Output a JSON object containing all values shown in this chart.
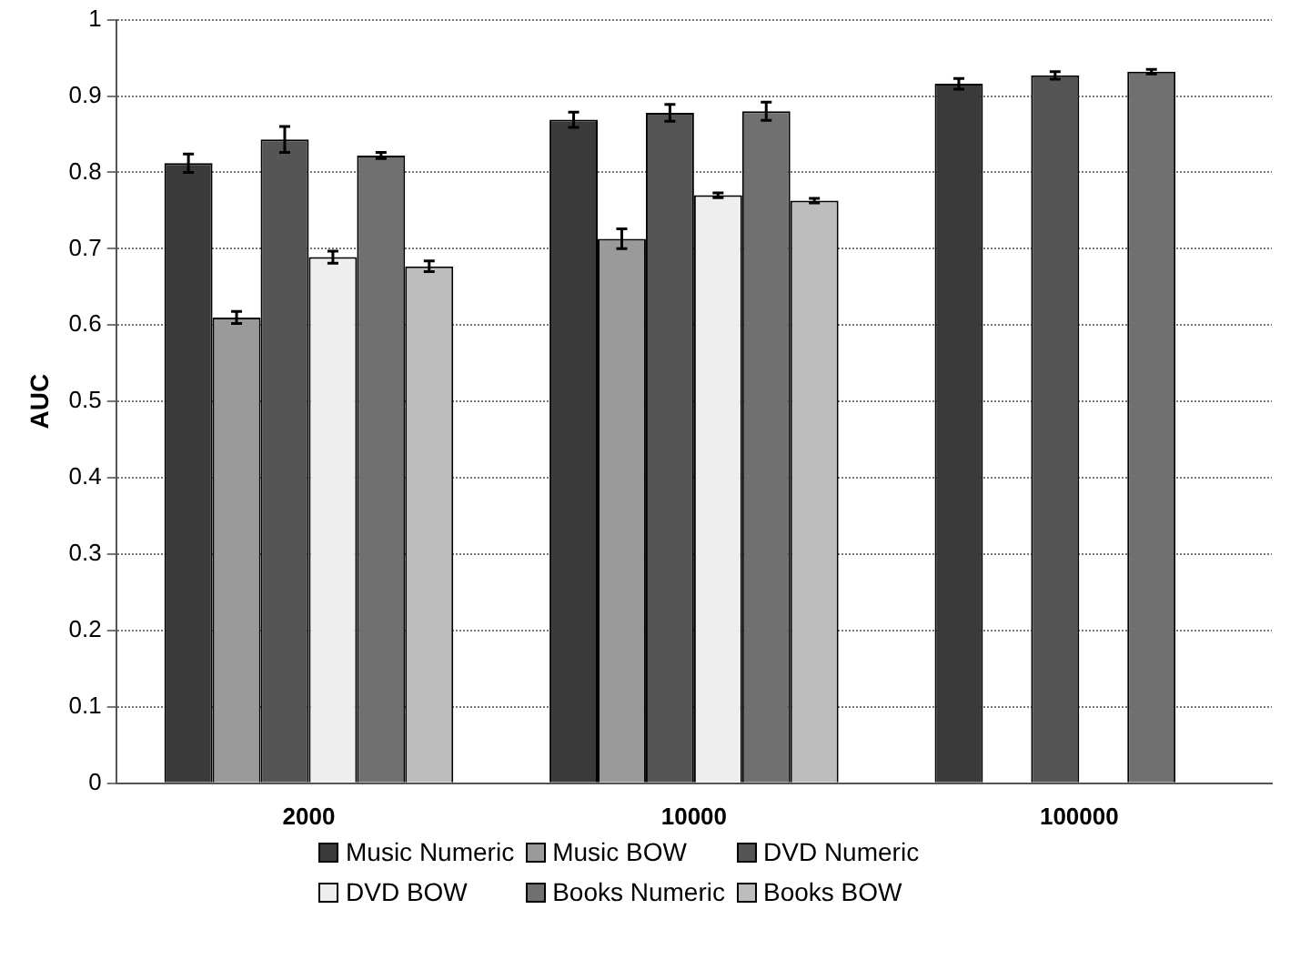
{
  "chart_data": {
    "type": "bar",
    "ylabel": "AUC",
    "categories": [
      "2000",
      "10000",
      "100000"
    ],
    "series": [
      {
        "name": "Music Numeric",
        "color": "#3a3a3a",
        "values": [
          0.812,
          0.869,
          0.916
        ],
        "errors": [
          0.012,
          0.01,
          0.007
        ]
      },
      {
        "name": "Music BOW",
        "color": "#9a9a9a",
        "values": [
          0.61,
          0.713,
          null
        ],
        "errors": [
          0.008,
          0.013,
          null
        ]
      },
      {
        "name": "DVD Numeric",
        "color": "#555555",
        "values": [
          0.843,
          0.878,
          0.927
        ],
        "errors": [
          0.017,
          0.011,
          0.005
        ]
      },
      {
        "name": "DVD BOW",
        "color": "#eeeeee",
        "values": [
          0.689,
          0.77,
          null
        ],
        "errors": [
          0.008,
          0.003,
          null
        ]
      },
      {
        "name": "Books Numeric",
        "color": "#707070",
        "values": [
          0.822,
          0.88,
          0.932
        ],
        "errors": [
          0.004,
          0.012,
          0.003
        ]
      },
      {
        "name": "Books BOW",
        "color": "#bdbdbd",
        "values": [
          0.677,
          0.763,
          null
        ],
        "errors": [
          0.007,
          0.003,
          null
        ]
      }
    ],
    "ylim": [
      0,
      1
    ],
    "yticks": [
      0,
      0.1,
      0.2,
      0.3,
      0.4,
      0.5,
      0.6,
      0.7,
      0.8,
      0.9,
      1
    ],
    "grid": "y",
    "legend": "bottom"
  }
}
